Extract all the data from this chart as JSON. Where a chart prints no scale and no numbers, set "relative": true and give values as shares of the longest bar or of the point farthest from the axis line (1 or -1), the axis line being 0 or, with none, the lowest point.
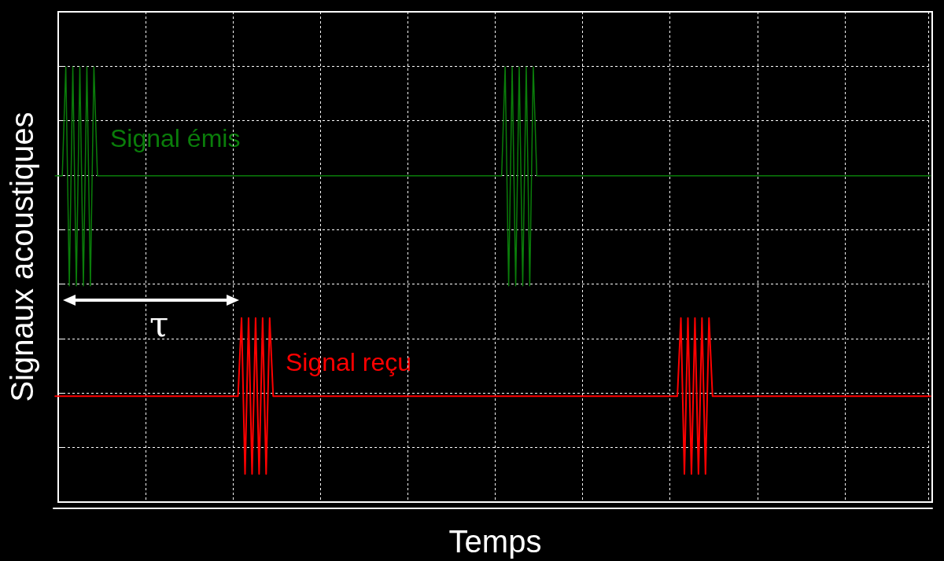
{
  "chart_data": {
    "type": "line",
    "relative": true,
    "xlabel": "Temps",
    "ylabel": "Signaux acoustiques",
    "annotations": [
      "τ"
    ],
    "grid": true,
    "legend": false,
    "marker": "none",
    "line_style": "solid",
    "categories": [
      null,
      null,
      null,
      null,
      null,
      null,
      null,
      null,
      null,
      null,
      null,
      null,
      null,
      null,
      null,
      null,
      null,
      null,
      null,
      null,
      null,
      null,
      null,
      null,
      null,
      null,
      null,
      null,
      null,
      null,
      null,
      null,
      null,
      null,
      null,
      null,
      null,
      null,
      null,
      null,
      null,
      null,
      null,
      null,
      null,
      null,
      null,
      null,
      null,
      null,
      null,
      null,
      null,
      null,
      null,
      null,
      null,
      null,
      null,
      null,
      null,
      null,
      null,
      null,
      null,
      null,
      null,
      null,
      null,
      null,
      null,
      null,
      null,
      null,
      null,
      null,
      null,
      null,
      null,
      null,
      null,
      null,
      null,
      null,
      null,
      null,
      null,
      null,
      null,
      null,
      null,
      null,
      null,
      null,
      null,
      null,
      null,
      null,
      null,
      null,
      null,
      null,
      null,
      null,
      null,
      null,
      null,
      null,
      null,
      null,
      null,
      null,
      null,
      null,
      null,
      null,
      null,
      null,
      null,
      null,
      null,
      null,
      null,
      null,
      null,
      null,
      null,
      null,
      null,
      null,
      null,
      null,
      null,
      null,
      null,
      null,
      null,
      null,
      null,
      null,
      null,
      null,
      null,
      null,
      null,
      null,
      null,
      null,
      null,
      null,
      null,
      null,
      null,
      null,
      null,
      null,
      null,
      null,
      null,
      null,
      null,
      null,
      null,
      null,
      null,
      null,
      null,
      null,
      null,
      null,
      null,
      null,
      null,
      null,
      null,
      null,
      null,
      null,
      null,
      null,
      null,
      null,
      null,
      null,
      null,
      null,
      null,
      null,
      null,
      null,
      null,
      null,
      null,
      null,
      null,
      null,
      null,
      null,
      null,
      null,
      null,
      null,
      null,
      null,
      null,
      null,
      null,
      null,
      null,
      null,
      null,
      null,
      null,
      null,
      null,
      null,
      null,
      null,
      null,
      null,
      null,
      null,
      null,
      null,
      null,
      null,
      null,
      null,
      null,
      null,
      null,
      null,
      null,
      null,
      null,
      null,
      null,
      null,
      null,
      null,
      null,
      null,
      null,
      null,
      null,
      null,
      null,
      null,
      null,
      null
    ],
    "series": [
      {
        "name": "Signal émis",
        "color": "#0a7d0a",
        "values": [
          0.753,
          0.753,
          0.753,
          1,
          0.504,
          1,
          0.504,
          1,
          0.504,
          1,
          0.504,
          1,
          0.753,
          0.753,
          0.753,
          0.753,
          0.753,
          0.753,
          0.753,
          0.753,
          0.753,
          0.753,
          0.753,
          0.753,
          0.753,
          0.753,
          0.753,
          0.753,
          0.753,
          0.753,
          0.753,
          0.753,
          0.753,
          0.753,
          0.753,
          0.753,
          0.753,
          0.753,
          0.753,
          0.753,
          0.753,
          0.753,
          0.753,
          0.753,
          0.753,
          0.753,
          0.753,
          0.753,
          0.753,
          0.753,
          0.753,
          0.753,
          0.753,
          0.753,
          0.753,
          0.753,
          0.753,
          0.753,
          0.753,
          0.753,
          0.753,
          0.753,
          0.753,
          0.753,
          0.753,
          0.753,
          0.753,
          0.753,
          0.753,
          0.753,
          0.753,
          0.753,
          0.753,
          0.753,
          0.753,
          0.753,
          0.753,
          0.753,
          0.753,
          0.753,
          0.753,
          0.753,
          0.753,
          0.753,
          0.753,
          0.753,
          0.753,
          0.753,
          0.753,
          0.753,
          0.753,
          0.753,
          0.753,
          0.753,
          0.753,
          0.753,
          0.753,
          0.753,
          0.753,
          0.753,
          0.753,
          0.753,
          0.753,
          0.753,
          0.753,
          0.753,
          0.753,
          0.753,
          0.753,
          0.753,
          0.753,
          0.753,
          0.753,
          0.753,
          0.753,
          0.753,
          0.753,
          0.753,
          0.753,
          0.753,
          0.753,
          0.753,
          0.753,
          0.753,
          0.753,
          0.753,
          0.753,
          0.753,
          1,
          0.504,
          1,
          0.504,
          1,
          0.504,
          1,
          0.504,
          1,
          0.753,
          0.753,
          0.753,
          0.753,
          0.753,
          0.753,
          0.753,
          0.753,
          0.753,
          0.753,
          0.753,
          0.753,
          0.753,
          0.753,
          0.753,
          0.753,
          0.753,
          0.753,
          0.753,
          0.753,
          0.753,
          0.753,
          0.753,
          0.753,
          0.753,
          0.753,
          0.753,
          0.753,
          0.753,
          0.753,
          0.753,
          0.753,
          0.753,
          0.753,
          0.753,
          0.753,
          0.753,
          0.753,
          0.753,
          0.753,
          0.753,
          0.753,
          0.753,
          0.753,
          0.753,
          0.753,
          0.753,
          0.753,
          0.753,
          0.753,
          0.753,
          0.753,
          0.753,
          0.753,
          0.753,
          0.753,
          0.753,
          0.753,
          0.753,
          0.753,
          0.753,
          0.753,
          0.753,
          0.753,
          0.753,
          0.753,
          0.753,
          0.753,
          0.753,
          0.753,
          0.753,
          0.753,
          0.753,
          0.753,
          0.753,
          0.753,
          0.753,
          0.753,
          0.753,
          0.753,
          0.753,
          0.753,
          0.753,
          0.753,
          0.753,
          0.753,
          0.753,
          0.753,
          0.753,
          0.753,
          0.753,
          0.753,
          0.753,
          0.753,
          0.753,
          0.753,
          0.753,
          0.753,
          0.753,
          0.753,
          0.753,
          0.753,
          0.753,
          0.753,
          0.753,
          0.753,
          0.753,
          0.753,
          0.753,
          0.753,
          0.753,
          0.753,
          0.753
        ]
      },
      {
        "name": "Signal reçu",
        "color": "#ff0000",
        "values": [
          0.254,
          0.254,
          0.254,
          0.254,
          0.254,
          0.254,
          0.254,
          0.254,
          0.254,
          0.254,
          0.254,
          0.254,
          0.254,
          0.254,
          0.254,
          0.254,
          0.254,
          0.254,
          0.254,
          0.254,
          0.254,
          0.254,
          0.254,
          0.254,
          0.254,
          0.254,
          0.254,
          0.254,
          0.254,
          0.254,
          0.254,
          0.254,
          0.254,
          0.254,
          0.254,
          0.254,
          0.254,
          0.254,
          0.254,
          0.254,
          0.254,
          0.254,
          0.254,
          0.254,
          0.254,
          0.254,
          0.254,
          0.254,
          0.254,
          0.254,
          0.254,
          0.254,
          0.254,
          0.431,
          0.078,
          0.431,
          0.078,
          0.431,
          0.078,
          0.431,
          0.078,
          0.431,
          0.254,
          0.254,
          0.254,
          0.254,
          0.254,
          0.254,
          0.254,
          0.254,
          0.254,
          0.254,
          0.254,
          0.254,
          0.254,
          0.254,
          0.254,
          0.254,
          0.254,
          0.254,
          0.254,
          0.254,
          0.254,
          0.254,
          0.254,
          0.254,
          0.254,
          0.254,
          0.254,
          0.254,
          0.254,
          0.254,
          0.254,
          0.254,
          0.254,
          0.254,
          0.254,
          0.254,
          0.254,
          0.254,
          0.254,
          0.254,
          0.254,
          0.254,
          0.254,
          0.254,
          0.254,
          0.254,
          0.254,
          0.254,
          0.254,
          0.254,
          0.254,
          0.254,
          0.254,
          0.254,
          0.254,
          0.254,
          0.254,
          0.254,
          0.254,
          0.254,
          0.254,
          0.254,
          0.254,
          0.254,
          0.254,
          0.254,
          0.254,
          0.254,
          0.254,
          0.254,
          0.254,
          0.254,
          0.254,
          0.254,
          0.254,
          0.254,
          0.254,
          0.254,
          0.254,
          0.254,
          0.254,
          0.254,
          0.254,
          0.254,
          0.254,
          0.254,
          0.254,
          0.254,
          0.254,
          0.254,
          0.254,
          0.254,
          0.254,
          0.254,
          0.254,
          0.254,
          0.254,
          0.254,
          0.254,
          0.254,
          0.254,
          0.254,
          0.254,
          0.254,
          0.254,
          0.254,
          0.254,
          0.254,
          0.254,
          0.254,
          0.254,
          0.254,
          0.254,
          0.254,
          0.254,
          0.254,
          0.431,
          0.078,
          0.431,
          0.078,
          0.431,
          0.078,
          0.431,
          0.078,
          0.431,
          0.254,
          0.254,
          0.254,
          0.254,
          0.254,
          0.254,
          0.254,
          0.254,
          0.254,
          0.254,
          0.254,
          0.254,
          0.254,
          0.254,
          0.254,
          0.254,
          0.254,
          0.254,
          0.254,
          0.254,
          0.254,
          0.254,
          0.254,
          0.254,
          0.254,
          0.254,
          0.254,
          0.254,
          0.254,
          0.254,
          0.254,
          0.254,
          0.254,
          0.254,
          0.254,
          0.254,
          0.254,
          0.254,
          0.254,
          0.254,
          0.254,
          0.254,
          0.254,
          0.254,
          0.254,
          0.254,
          0.254,
          0.254,
          0.254,
          0.254,
          0.254,
          0.254,
          0.254,
          0.254,
          0.254,
          0.254,
          0.254,
          0.254,
          0.254,
          0.254,
          0.254,
          0.254,
          0.254
        ]
      }
    ]
  }
}
